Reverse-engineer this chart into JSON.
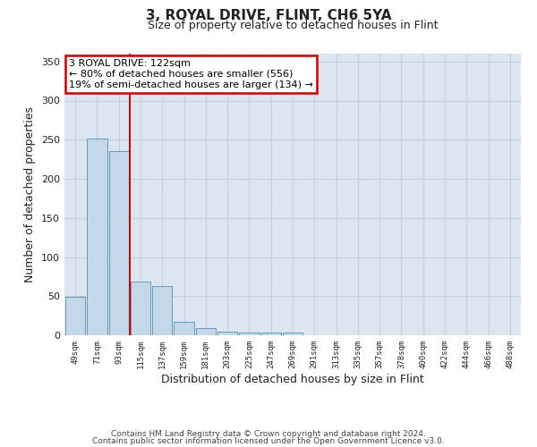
{
  "title": "3, ROYAL DRIVE, FLINT, CH6 5YA",
  "subtitle": "Size of property relative to detached houses in Flint",
  "xlabel": "Distribution of detached houses by size in Flint",
  "ylabel": "Number of detached properties",
  "bar_labels": [
    "49sqm",
    "71sqm",
    "93sqm",
    "115sqm",
    "137sqm",
    "159sqm",
    "181sqm",
    "203sqm",
    "225sqm",
    "247sqm",
    "269sqm",
    "291sqm",
    "313sqm",
    "335sqm",
    "357sqm",
    "378sqm",
    "400sqm",
    "422sqm",
    "444sqm",
    "466sqm",
    "488sqm"
  ],
  "bar_values": [
    49,
    251,
    236,
    69,
    63,
    17,
    9,
    5,
    4,
    3,
    3,
    0,
    0,
    0,
    0,
    0,
    0,
    0,
    0,
    0,
    0
  ],
  "bar_color": "#c5d8ea",
  "bar_edge_color": "#6699bb",
  "vline_index": 3,
  "vline_color": "#cc0000",
  "annotation_title": "3 ROYAL DRIVE: 122sqm",
  "annotation_line1": "← 80% of detached houses are smaller (556)",
  "annotation_line2": "19% of semi-detached houses are larger (134) →",
  "annotation_box_color": "#cc0000",
  "ylim": [
    0,
    360
  ],
  "yticks": [
    0,
    50,
    100,
    150,
    200,
    250,
    300,
    350
  ],
  "grid_color": "#c5cfe0",
  "background_color": "#dce6f0",
  "footer1": "Contains HM Land Registry data © Crown copyright and database right 2024.",
  "footer2": "Contains public sector information licensed under the Open Government Licence v3.0."
}
